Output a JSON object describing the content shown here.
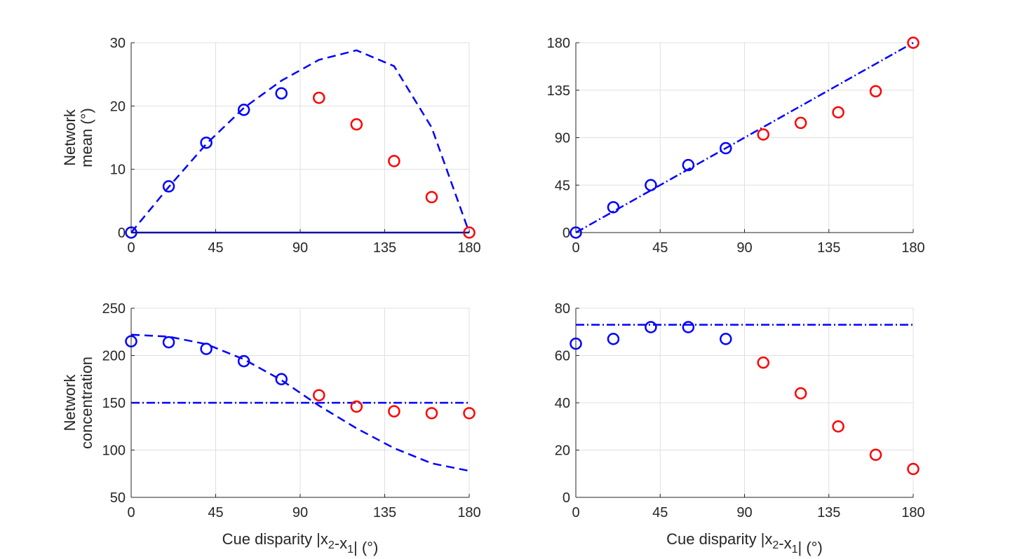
{
  "chart_data": [
    {
      "type": "scatter",
      "xlabel": "",
      "ylabel_lines": [
        "Network",
        "mean (°)"
      ],
      "xlim": [
        0,
        180
      ],
      "ylim": [
        0,
        30
      ],
      "xticks": [
        0,
        45,
        90,
        135,
        180
      ],
      "yticks": [
        0,
        10,
        20,
        30
      ],
      "grid": true,
      "points": {
        "blue": {
          "color": "#0000ff",
          "x": [
            0,
            20,
            40,
            60,
            80
          ],
          "y": [
            0,
            7.3,
            14.2,
            19.4,
            22.0
          ]
        },
        "red": {
          "color": "#ff0000",
          "x": [
            100,
            120,
            140,
            160,
            180
          ],
          "y": [
            21.3,
            17.1,
            11.3,
            5.6,
            0
          ]
        }
      },
      "lines": [
        {
          "style": "dashed",
          "color": "#0000ff",
          "x": [
            0,
            20,
            40,
            60,
            80,
            100,
            120,
            140,
            160,
            180
          ],
          "y": [
            0,
            7.2,
            14.0,
            19.7,
            24.0,
            27.3,
            28.8,
            26.3,
            16.6,
            0
          ]
        },
        {
          "style": "solid",
          "color": "#0000ff",
          "x": [
            0,
            180
          ],
          "y": [
            0,
            0
          ]
        }
      ]
    },
    {
      "type": "scatter",
      "xlabel": "",
      "ylabel_lines": [],
      "xlim": [
        0,
        180
      ],
      "ylim": [
        0,
        180
      ],
      "xticks": [
        0,
        45,
        90,
        135,
        180
      ],
      "yticks": [
        0,
        45,
        90,
        135,
        180
      ],
      "grid": true,
      "points": {
        "blue": {
          "color": "#0000ff",
          "x": [
            0,
            20,
            40,
            60,
            80
          ],
          "y": [
            0,
            24,
            45,
            64,
            80
          ]
        },
        "red": {
          "color": "#ff0000",
          "x": [
            100,
            120,
            140,
            160,
            180
          ],
          "y": [
            93,
            104,
            114,
            134,
            180
          ]
        }
      },
      "lines": [
        {
          "style": "dashdot",
          "color": "#0000ff",
          "x": [
            0,
            180
          ],
          "y": [
            0,
            180
          ]
        }
      ]
    },
    {
      "type": "scatter",
      "xlabel": "Cue disparity |x2-x1| (°)",
      "ylabel_lines": [
        "Network",
        "concentration"
      ],
      "xlim": [
        0,
        180
      ],
      "ylim": [
        50,
        250
      ],
      "xticks": [
        0,
        45,
        90,
        135,
        180
      ],
      "yticks": [
        50,
        100,
        150,
        200,
        250
      ],
      "grid": true,
      "points": {
        "blue": {
          "color": "#0000ff",
          "x": [
            0,
            20,
            40,
            60,
            80
          ],
          "y": [
            215,
            214,
            207,
            194,
            175
          ]
        },
        "red": {
          "color": "#ff0000",
          "x": [
            100,
            120,
            140,
            160,
            180
          ],
          "y": [
            158,
            146,
            141,
            139,
            139
          ]
        }
      },
      "lines": [
        {
          "style": "dashed",
          "color": "#0000ff",
          "x": [
            0,
            20,
            40,
            60,
            80,
            100,
            120,
            140,
            160,
            180
          ],
          "y": [
            222,
            220,
            212,
            196,
            174,
            147,
            123,
            102,
            86,
            78
          ]
        },
        {
          "style": "dashdot",
          "color": "#0000ff",
          "x": [
            0,
            180
          ],
          "y": [
            150,
            150
          ]
        }
      ]
    },
    {
      "type": "scatter",
      "xlabel": "Cue disparity |x2-x1| (°)",
      "ylabel_lines": [],
      "xlim": [
        0,
        180
      ],
      "ylim": [
        0,
        80
      ],
      "xticks": [
        0,
        45,
        90,
        135,
        180
      ],
      "yticks": [
        0,
        20,
        40,
        60,
        80
      ],
      "grid": true,
      "points": {
        "blue": {
          "color": "#0000ff",
          "x": [
            0,
            20,
            40,
            60,
            80
          ],
          "y": [
            65,
            67,
            72,
            72,
            67
          ]
        },
        "red": {
          "color": "#ff0000",
          "x": [
            100,
            120,
            140,
            160,
            180
          ],
          "y": [
            57,
            44,
            30,
            18,
            12
          ]
        }
      },
      "lines": [
        {
          "style": "dashdot",
          "color": "#0000ff",
          "x": [
            0,
            180
          ],
          "y": [
            73,
            73
          ]
        }
      ]
    }
  ]
}
